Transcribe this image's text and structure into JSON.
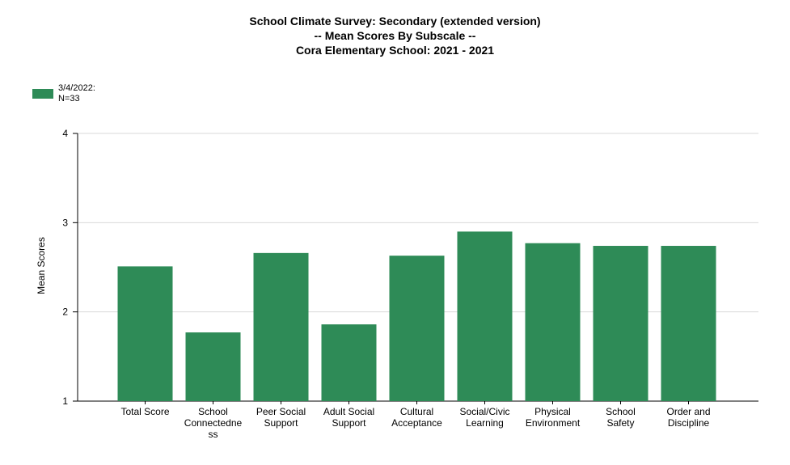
{
  "chart_data": {
    "type": "bar",
    "title": [
      "School Climate Survey: Secondary (extended version)",
      "-- Mean Scores By Subscale --",
      "Cora Elementary School: 2021 - 2021"
    ],
    "categories": [
      [
        "Total Score"
      ],
      [
        "School",
        "Connectedne",
        "ss"
      ],
      [
        "Peer Social",
        "Support"
      ],
      [
        "Adult Social",
        "Support"
      ],
      [
        "Cultural",
        "Acceptance"
      ],
      [
        "Social/Civic",
        "Learning"
      ],
      [
        "Physical",
        "Environment"
      ],
      [
        "School",
        "Safety"
      ],
      [
        "Order and",
        "Discipline"
      ]
    ],
    "series": [
      {
        "name": [
          "3/4/2022:",
          "N=33"
        ],
        "color": "#2e8b57",
        "values": [
          2.51,
          1.77,
          2.66,
          1.86,
          2.63,
          2.9,
          2.77,
          2.74,
          2.74
        ]
      }
    ],
    "xlabel": "",
    "ylabel": "Mean Scores",
    "ylim": [
      1,
      4
    ],
    "yticks": [
      "1",
      "2",
      "3",
      "4"
    ],
    "grid": true,
    "legend_position": "top-left"
  }
}
